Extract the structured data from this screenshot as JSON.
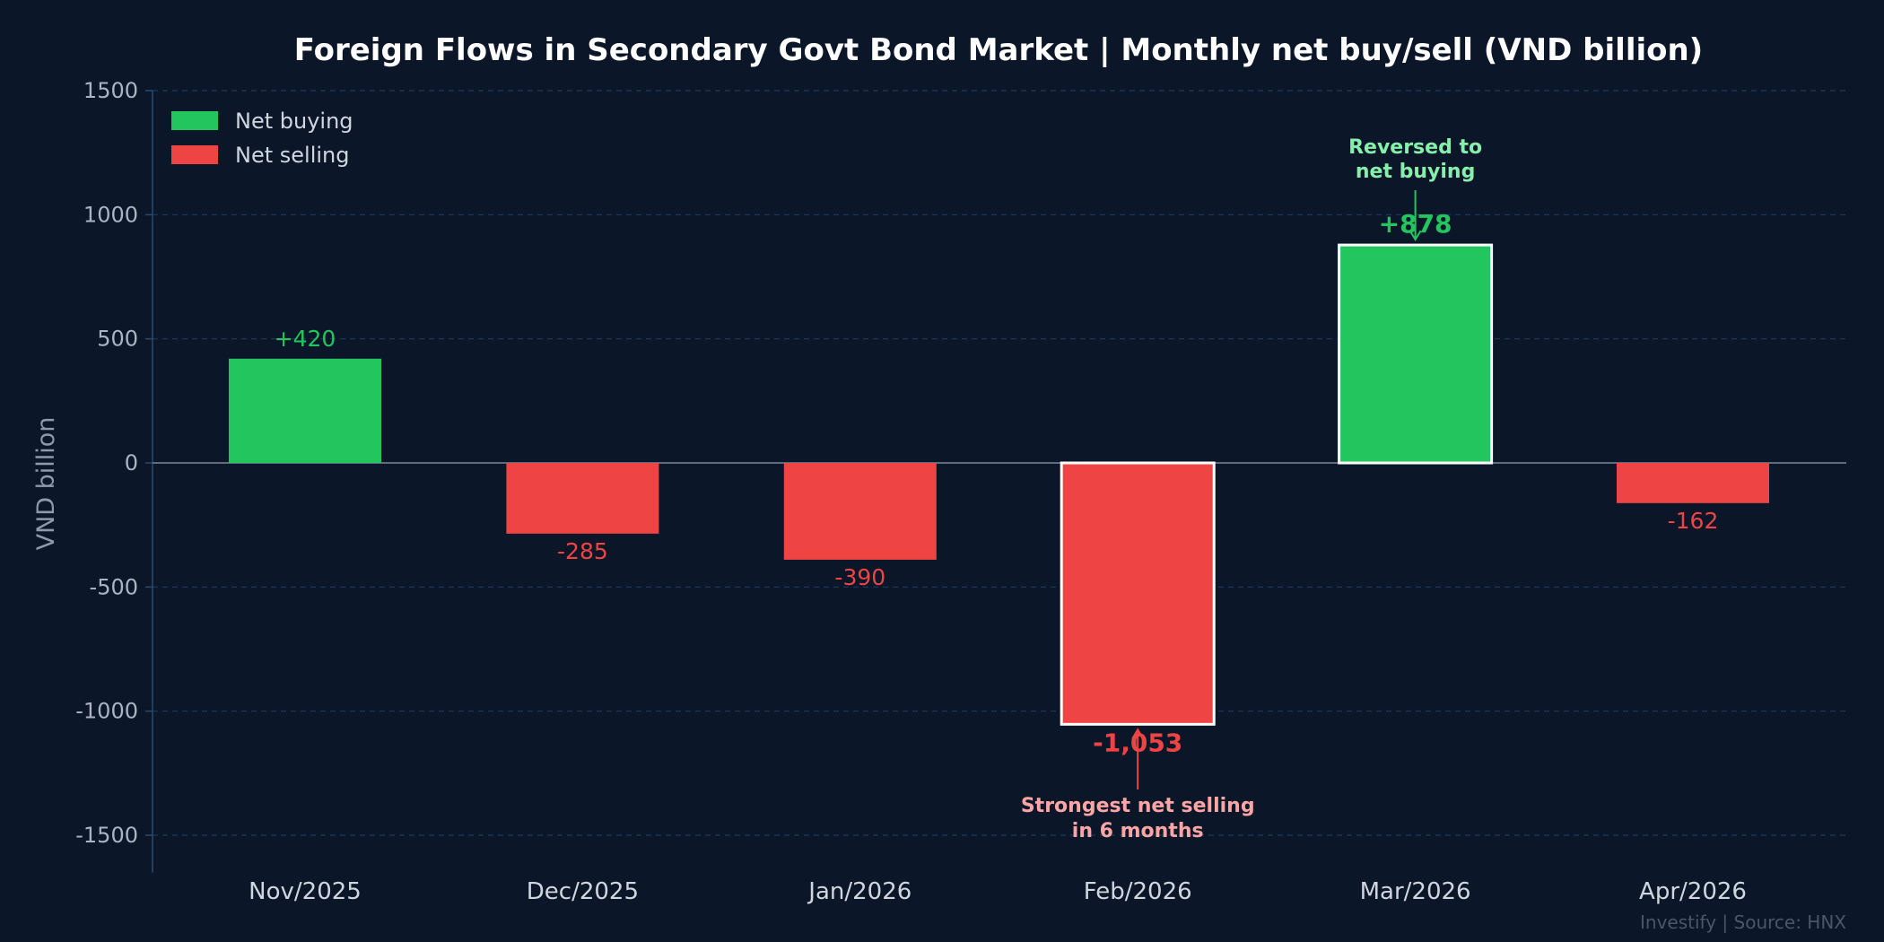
{
  "chart_data": {
    "type": "bar",
    "title": "Foreign Flows in Secondary Govt Bond Market  |  Monthly net buy/sell (VND billion)",
    "ylabel": "VND billion",
    "xlabel": "",
    "categories": [
      "Nov/2025",
      "Dec/2025",
      "Jan/2026",
      "Feb/2026",
      "Mar/2026",
      "Apr/2026"
    ],
    "values": [
      420,
      -285,
      -390,
      -1053,
      878,
      -162
    ],
    "value_labels": [
      "+420",
      "-285",
      "-390",
      "-1,053",
      "+878",
      "-162"
    ],
    "highlighted": [
      false,
      false,
      false,
      true,
      true,
      false
    ],
    "ylim": [
      -1650,
      1500
    ],
    "yticks": [
      1500,
      1000,
      500,
      0,
      -500,
      -1000,
      -1500
    ],
    "ytick_labels": [
      "1500",
      "1000",
      "500",
      "0",
      "-500",
      "-1000",
      "-1500"
    ],
    "grid": true,
    "legend": {
      "placement": "top-left",
      "entries": [
        {
          "label": "Net buying",
          "color": "#22c55e"
        },
        {
          "label": "Net selling",
          "color": "#ef4444"
        }
      ]
    },
    "annotations": [
      {
        "category": "Mar/2026",
        "lines": [
          "Reversed to",
          "net buying"
        ],
        "color": "#86efac",
        "position": "above"
      },
      {
        "category": "Feb/2026",
        "lines": [
          "Strongest net selling",
          "in 6 months"
        ],
        "color": "#fca5a5",
        "position": "below"
      }
    ]
  },
  "colors": {
    "background": "#0b1628",
    "positive": "#22c55e",
    "negative": "#ef4444",
    "positive_label": "#22c55e",
    "negative_label": "#ef4444",
    "grid": "#1f3a5c",
    "axis": "#2a4a70",
    "zero_line": "#7b8798"
  },
  "footer": "Investify  |  Source: HNX"
}
